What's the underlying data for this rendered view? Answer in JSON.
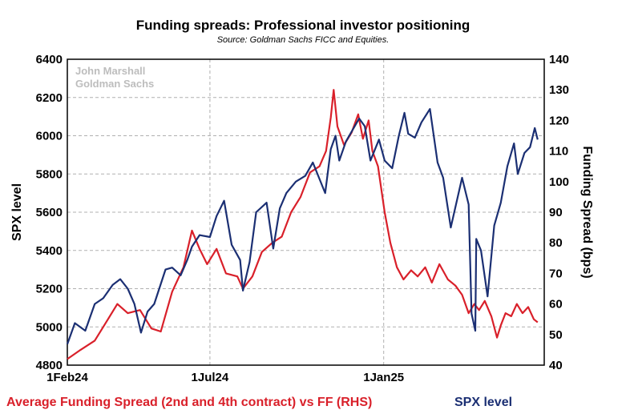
{
  "chart_data": {
    "type": "line",
    "title": "Funding spreads: Professional investor positioning",
    "subtitle": "Source: Goldman Sachs FICC and Equities.",
    "watermark": [
      "John Marshall",
      "Goldman Sachs"
    ],
    "x_ticks": [
      "1Feb24",
      "1Jul24",
      "1Jan25"
    ],
    "ylabel_left": "SPX level",
    "ylabel_right": "Funding Spread (bps)",
    "ylim_left": [
      4800,
      6400
    ],
    "ylim_right": [
      40,
      140
    ],
    "yticks_left": [
      4800,
      5000,
      5200,
      5400,
      5600,
      5800,
      6000,
      6200,
      6400
    ],
    "yticks_right": [
      40,
      50,
      60,
      70,
      80,
      90,
      100,
      110,
      120,
      130,
      140
    ],
    "grid": true,
    "colors": {
      "spx": "#1b2f73",
      "funding": "#d9202a"
    },
    "series": [
      {
        "name": "SPX level",
        "axis": "left",
        "points": [
          [
            "2024-02-01",
            4910
          ],
          [
            "2024-02-09",
            5020
          ],
          [
            "2024-02-20",
            4980
          ],
          [
            "2024-03-01",
            5120
          ],
          [
            "2024-03-10",
            5150
          ],
          [
            "2024-03-20",
            5220
          ],
          [
            "2024-03-28",
            5250
          ],
          [
            "2024-04-05",
            5200
          ],
          [
            "2024-04-12",
            5120
          ],
          [
            "2024-04-19",
            4970
          ],
          [
            "2024-04-26",
            5080
          ],
          [
            "2024-05-03",
            5120
          ],
          [
            "2024-05-15",
            5300
          ],
          [
            "2024-05-22",
            5310
          ],
          [
            "2024-05-31",
            5270
          ],
          [
            "2024-06-07",
            5350
          ],
          [
            "2024-06-12",
            5420
          ],
          [
            "2024-06-20",
            5480
          ],
          [
            "2024-07-01",
            5470
          ],
          [
            "2024-07-08",
            5580
          ],
          [
            "2024-07-16",
            5660
          ],
          [
            "2024-07-24",
            5430
          ],
          [
            "2024-08-02",
            5350
          ],
          [
            "2024-08-05",
            5190
          ],
          [
            "2024-08-12",
            5340
          ],
          [
            "2024-08-19",
            5600
          ],
          [
            "2024-08-30",
            5650
          ],
          [
            "2024-09-06",
            5410
          ],
          [
            "2024-09-13",
            5620
          ],
          [
            "2024-09-20",
            5700
          ],
          [
            "2024-09-30",
            5760
          ],
          [
            "2024-10-10",
            5790
          ],
          [
            "2024-10-18",
            5860
          ],
          [
            "2024-10-31",
            5700
          ],
          [
            "2024-11-06",
            5930
          ],
          [
            "2024-11-11",
            6000
          ],
          [
            "2024-11-15",
            5870
          ],
          [
            "2024-11-22",
            5970
          ],
          [
            "2024-12-06",
            6090
          ],
          [
            "2024-12-12",
            6050
          ],
          [
            "2024-12-18",
            5870
          ],
          [
            "2024-12-27",
            5980
          ],
          [
            "2025-01-02",
            5870
          ],
          [
            "2025-01-10",
            5830
          ],
          [
            "2025-01-17",
            6000
          ],
          [
            "2025-01-23",
            6120
          ],
          [
            "2025-01-27",
            6010
          ],
          [
            "2025-02-03",
            5990
          ],
          [
            "2025-02-10",
            6070
          ],
          [
            "2025-02-19",
            6140
          ],
          [
            "2025-02-27",
            5860
          ],
          [
            "2025-03-05",
            5780
          ],
          [
            "2025-03-13",
            5520
          ],
          [
            "2025-03-25",
            5780
          ],
          [
            "2025-04-01",
            5640
          ],
          [
            "2025-04-04",
            5070
          ],
          [
            "2025-04-08",
            4980
          ],
          [
            "2025-04-09",
            5460
          ],
          [
            "2025-04-14",
            5400
          ],
          [
            "2025-04-21",
            5160
          ],
          [
            "2025-04-28",
            5530
          ],
          [
            "2025-05-05",
            5650
          ],
          [
            "2025-05-12",
            5840
          ],
          [
            "2025-05-19",
            5960
          ],
          [
            "2025-05-23",
            5800
          ],
          [
            "2025-05-30",
            5910
          ],
          [
            "2025-06-05",
            5940
          ],
          [
            "2025-06-10",
            6040
          ],
          [
            "2025-06-13",
            5980
          ]
        ]
      },
      {
        "name": "Average Funding Spread (2nd and 4th contract) vs FF (RHS)",
        "axis": "right",
        "points": [
          [
            "2024-02-01",
            42
          ],
          [
            "2024-02-15",
            45
          ],
          [
            "2024-03-01",
            48
          ],
          [
            "2024-03-15",
            55
          ],
          [
            "2024-03-25",
            60
          ],
          [
            "2024-04-05",
            57
          ],
          [
            "2024-04-18",
            58
          ],
          [
            "2024-04-30",
            52
          ],
          [
            "2024-05-10",
            51
          ],
          [
            "2024-05-22",
            64
          ],
          [
            "2024-06-03",
            72
          ],
          [
            "2024-06-12",
            84
          ],
          [
            "2024-06-20",
            78
          ],
          [
            "2024-06-28",
            73
          ],
          [
            "2024-07-08",
            78
          ],
          [
            "2024-07-18",
            70
          ],
          [
            "2024-07-30",
            69
          ],
          [
            "2024-08-05",
            65
          ],
          [
            "2024-08-15",
            69
          ],
          [
            "2024-08-25",
            77
          ],
          [
            "2024-09-05",
            80
          ],
          [
            "2024-09-15",
            82
          ],
          [
            "2024-09-25",
            90
          ],
          [
            "2024-10-05",
            95
          ],
          [
            "2024-10-15",
            103
          ],
          [
            "2024-10-25",
            105
          ],
          [
            "2024-11-01",
            110
          ],
          [
            "2024-11-06",
            121
          ],
          [
            "2024-11-09",
            130
          ],
          [
            "2024-11-13",
            118
          ],
          [
            "2024-11-20",
            112
          ],
          [
            "2024-11-28",
            116
          ],
          [
            "2024-12-05",
            122
          ],
          [
            "2024-12-10",
            114
          ],
          [
            "2024-12-16",
            120
          ],
          [
            "2024-12-20",
            110
          ],
          [
            "2024-12-26",
            105
          ],
          [
            "2025-01-02",
            90
          ],
          [
            "2025-01-08",
            80
          ],
          [
            "2025-01-15",
            72
          ],
          [
            "2025-01-22",
            68
          ],
          [
            "2025-01-30",
            71
          ],
          [
            "2025-02-06",
            69
          ],
          [
            "2025-02-14",
            72
          ],
          [
            "2025-02-21",
            67
          ],
          [
            "2025-03-01",
            73
          ],
          [
            "2025-03-10",
            68
          ],
          [
            "2025-03-18",
            66
          ],
          [
            "2025-03-25",
            63
          ],
          [
            "2025-04-01",
            57
          ],
          [
            "2025-04-07",
            60
          ],
          [
            "2025-04-12",
            58
          ],
          [
            "2025-04-18",
            61
          ],
          [
            "2025-04-25",
            56
          ],
          [
            "2025-05-01",
            49
          ],
          [
            "2025-05-05",
            53
          ],
          [
            "2025-05-10",
            57
          ],
          [
            "2025-05-16",
            56
          ],
          [
            "2025-05-22",
            60
          ],
          [
            "2025-05-28",
            57
          ],
          [
            "2025-06-03",
            59
          ],
          [
            "2025-06-09",
            55
          ],
          [
            "2025-06-13",
            54
          ]
        ]
      }
    ]
  }
}
